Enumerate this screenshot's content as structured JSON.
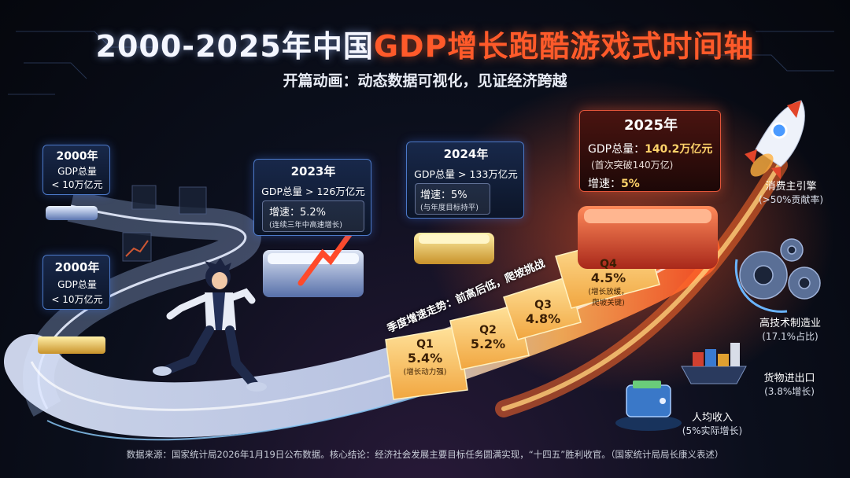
{
  "title_part1": "2000-2025年中国",
  "title_part2": "GDP增长跑酷游戏式时间轴",
  "subtitle": "开篇动画：动态数据可视化，见证经济跨越",
  "milestones": {
    "y2000a": {
      "year": "2000年",
      "line1": "GDP总量",
      "line2": "< 10万亿元"
    },
    "y2000b": {
      "year": "2000年",
      "line1": "GDP总量",
      "line2": "< 10万亿元"
    },
    "y2023": {
      "year": "2023年",
      "gdp": "GDP总量 > 126万亿元",
      "growth": "增速：5.2%",
      "note": "(连续三年中高速增长)"
    },
    "y2024": {
      "year": "2024年",
      "gdp": "GDP总量 > 133万亿元",
      "growth": "增速：5%",
      "note": "(与年度目标持平)"
    },
    "y2025": {
      "year": "2025年",
      "gdp_label": "GDP总量：",
      "gdp_value": "140.2万亿元",
      "note": "(首次突破140万亿)",
      "growth_label": "增速：",
      "growth_value": "5%"
    }
  },
  "quarter_label": "季度增速走势：前高后低，爬坡挑战",
  "quarters": [
    {
      "q": "Q1",
      "rate": "5.4%",
      "note": "(增长动力强)"
    },
    {
      "q": "Q2",
      "rate": "5.2%",
      "note": ""
    },
    {
      "q": "Q3",
      "rate": "4.8%",
      "note": ""
    },
    {
      "q": "Q4",
      "rate": "4.5%",
      "note": "(增长放缓，",
      "note2": "爬坡关键)"
    }
  ],
  "right_items": {
    "consumption": {
      "title": "消费主引擎",
      "sub": "(>50%贡献率)"
    },
    "hightech": {
      "title": "高技术制造业",
      "sub": "(17.1%占比)"
    },
    "trade": {
      "title": "货物进出口",
      "sub": "(3.8%增长)"
    },
    "income": {
      "title": "人均收入",
      "sub": "(5%实际增长)"
    }
  },
  "footer": "数据来源：国家统计局2026年1月19日公布数据。核心结论：经济社会发展主要目标任务圆满实现，“十四五”胜利收官。（国家统计局局长康义表述）",
  "colors": {
    "accent_red": "#ff5a2a",
    "gold": "#ffd36a",
    "blue_glow": "#7fb2ff"
  }
}
